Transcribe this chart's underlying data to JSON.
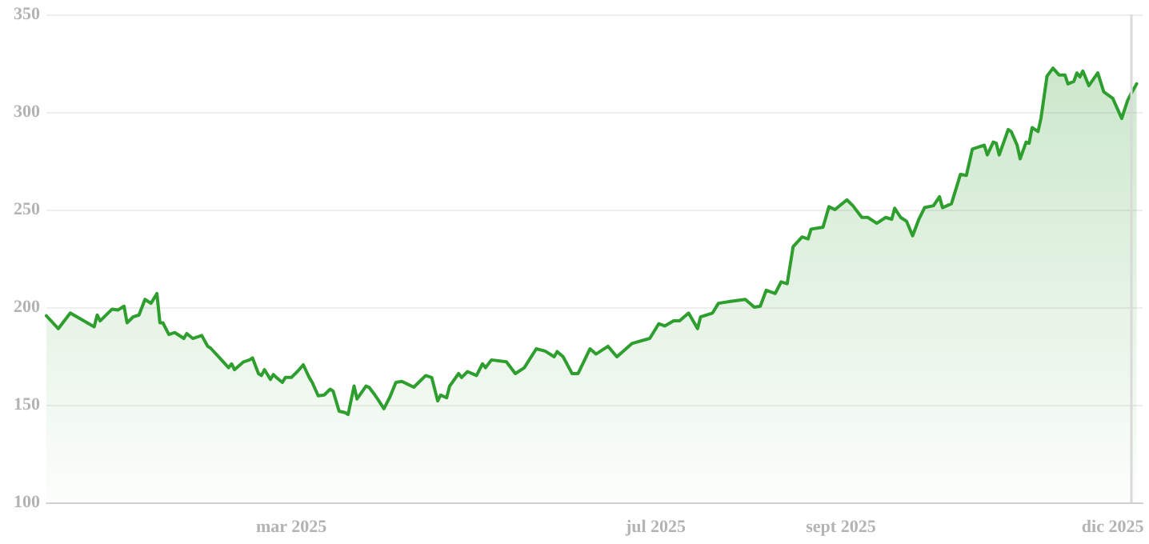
{
  "chart_data": {
    "type": "area",
    "x": [
      "2024-12-09",
      "2024-12-13",
      "2024-12-17",
      "2024-12-25",
      "2024-12-26",
      "2024-12-27",
      "2024-12-31",
      "2025-01-02",
      "2025-01-04",
      "2025-01-05",
      "2025-01-07",
      "2025-01-09",
      "2025-01-11",
      "2025-01-13",
      "2025-01-15",
      "2025-01-16",
      "2025-01-17",
      "2025-01-19",
      "2025-01-21",
      "2025-01-24",
      "2025-01-25",
      "2025-01-27",
      "2025-01-30",
      "2025-02-01",
      "2025-02-02",
      "2025-02-05",
      "2025-02-08",
      "2025-02-09",
      "2025-02-10",
      "2025-02-13",
      "2025-02-15",
      "2025-02-16",
      "2025-02-18",
      "2025-02-19",
      "2025-02-20",
      "2025-02-22",
      "2025-02-23",
      "2025-02-24",
      "2025-02-26",
      "2025-02-27",
      "2025-03-01",
      "2025-03-03",
      "2025-03-05",
      "2025-03-07",
      "2025-03-08",
      "2025-03-10",
      "2025-03-12",
      "2025-03-14",
      "2025-03-15",
      "2025-03-17",
      "2025-03-19",
      "2025-03-20",
      "2025-03-22",
      "2025-03-23",
      "2025-03-26",
      "2025-03-27",
      "2025-03-29",
      "2025-03-30",
      "2025-04-01",
      "2025-04-03",
      "2025-04-05",
      "2025-04-07",
      "2025-04-11",
      "2025-04-15",
      "2025-04-17",
      "2025-04-19",
      "2025-04-20",
      "2025-04-22",
      "2025-04-23",
      "2025-04-26",
      "2025-04-27",
      "2025-04-29",
      "2025-05-02",
      "2025-05-04",
      "2025-05-05",
      "2025-05-07",
      "2025-05-12",
      "2025-05-15",
      "2025-05-18",
      "2025-05-22",
      "2025-05-25",
      "2025-05-28",
      "2025-05-29",
      "2025-05-31",
      "2025-06-03",
      "2025-06-05",
      "2025-06-09",
      "2025-06-11",
      "2025-06-15",
      "2025-06-18",
      "2025-06-23",
      "2025-06-29",
      "2025-07-02",
      "2025-07-04",
      "2025-07-07",
      "2025-07-09",
      "2025-07-12",
      "2025-07-15",
      "2025-07-16",
      "2025-07-20",
      "2025-07-22",
      "2025-07-26",
      "2025-07-31",
      "2025-08-03",
      "2025-08-05",
      "2025-08-07",
      "2025-08-10",
      "2025-08-12",
      "2025-08-14",
      "2025-08-16",
      "2025-08-19",
      "2025-08-21",
      "2025-08-22",
      "2025-08-26",
      "2025-08-28",
      "2025-08-30",
      "2025-09-03",
      "2025-09-05",
      "2025-09-08",
      "2025-09-10",
      "2025-09-13",
      "2025-09-16",
      "2025-09-18",
      "2025-09-19",
      "2025-09-21",
      "2025-09-23",
      "2025-09-25",
      "2025-09-27",
      "2025-09-29",
      "2025-10-02",
      "2025-10-04",
      "2025-10-05",
      "2025-10-08",
      "2025-10-11",
      "2025-10-13",
      "2025-10-15",
      "2025-10-17",
      "2025-10-19",
      "2025-10-20",
      "2025-10-22",
      "2025-10-23",
      "2025-10-24",
      "2025-10-27",
      "2025-10-28",
      "2025-10-30",
      "2025-10-31",
      "2025-11-02",
      "2025-11-03",
      "2025-11-04",
      "2025-11-06",
      "2025-11-07",
      "2025-11-09",
      "2025-11-11",
      "2025-11-13",
      "2025-11-15",
      "2025-11-16",
      "2025-11-18",
      "2025-11-19",
      "2025-11-20",
      "2025-11-21",
      "2025-11-23",
      "2025-11-26",
      "2025-11-28",
      "2025-12-01",
      "2025-12-04",
      "2025-12-06",
      "2025-12-07",
      "2025-12-09"
    ],
    "series": [
      {
        "color": "#2e9e2e",
        "values": [
          195.6,
          189,
          197,
          190,
          196,
          193,
          199,
          198.6,
          200.5,
          192,
          195,
          196,
          204,
          202,
          207,
          192,
          192,
          186,
          187,
          184,
          186.5,
          184,
          185.5,
          180,
          179,
          174,
          169,
          171,
          168,
          172,
          173,
          174,
          166,
          165,
          168,
          163,
          165.5,
          164,
          161.5,
          164,
          164,
          167,
          170.5,
          164,
          161.5,
          154.6,
          155,
          158,
          157,
          146.7,
          146,
          145,
          159.6,
          153,
          159.6,
          159,
          155,
          152.7,
          148,
          154,
          161.5,
          162,
          159,
          165,
          164,
          152,
          155,
          153.6,
          159.6,
          166,
          164,
          167,
          165,
          171,
          169,
          173,
          172,
          166,
          169,
          178.7,
          177.5,
          174.6,
          177.3,
          174.6,
          166,
          166,
          178.7,
          176,
          180,
          174.6,
          181.4,
          184,
          191.5,
          190.4,
          193,
          193,
          197,
          189,
          195,
          197,
          202,
          203,
          204,
          200,
          200.5,
          208.7,
          207,
          213,
          212,
          231,
          236,
          235,
          240,
          241,
          251.5,
          250,
          255,
          252,
          246,
          246,
          243,
          246,
          245,
          250.7,
          246,
          244,
          236.6,
          244.7,
          251,
          252,
          256.6,
          251,
          253,
          268,
          267.5,
          281,
          282,
          283,
          278,
          284.6,
          284,
          278,
          291,
          290,
          283,
          276,
          284.6,
          284,
          292,
          290,
          297,
          318.4,
          322.5,
          319,
          319,
          314.4,
          315.7,
          320,
          318,
          321,
          313.5,
          320,
          310.3,
          307,
          296.7,
          306,
          309,
          314.4
        ]
      }
    ],
    "xlim": [
      "2024-12-09",
      "2025-12-11"
    ],
    "xticks": [
      {
        "value": "2025-03-01",
        "label": "mar 2025"
      },
      {
        "value": "2025-07-01",
        "label": "jul 2025"
      },
      {
        "value": "2025-09-01",
        "label": "sept 2025"
      },
      {
        "value": "2025-12-01",
        "label": "dic 2025"
      }
    ],
    "ylim": [
      100,
      350
    ],
    "yticks": [
      100,
      150,
      200,
      250,
      300,
      350
    ],
    "grid": "y",
    "marker": "none",
    "line_style": "solid",
    "ref_lines": [
      {
        "axis": "x",
        "value": "2025-12-07",
        "color": "#d9d9d9"
      }
    ]
  }
}
